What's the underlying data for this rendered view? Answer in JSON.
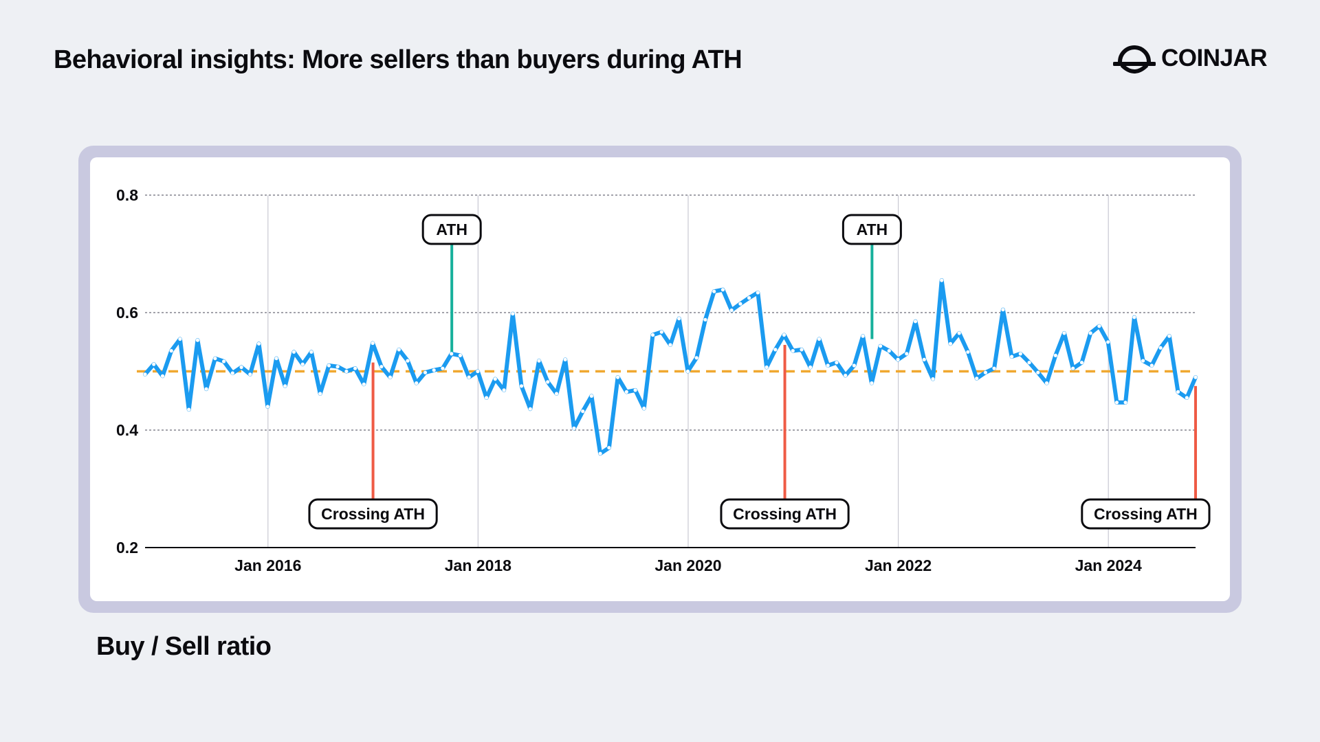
{
  "header": {
    "title": "Behavioral insights: More sellers than buyers during ATH",
    "logo_text": "COINJAR"
  },
  "footer": {
    "label": "Buy / Sell ratio"
  },
  "colors": {
    "line": "#1b9bf0",
    "reference": "#f0a830",
    "ath": "#16b09b",
    "crossing": "#ef5b45"
  },
  "chart_data": {
    "type": "line",
    "title": "Behavioral insights: More sellers than buyers during ATH",
    "ylabel": "Buy / Sell ratio",
    "xlabel": "",
    "ylim": [
      0.2,
      0.8
    ],
    "xlim": [
      2014.83,
      2024.83
    ],
    "y_ticks": [
      {
        "value": 0.2,
        "label": "0.2"
      },
      {
        "value": 0.4,
        "label": "0.4"
      },
      {
        "value": 0.6,
        "label": "0.6"
      },
      {
        "value": 0.8,
        "label": "0.8"
      }
    ],
    "x_ticks": [
      {
        "value": 2016,
        "label": "Jan 2016"
      },
      {
        "value": 2018,
        "label": "Jan 2018"
      },
      {
        "value": 2020,
        "label": "Jan 2020"
      },
      {
        "value": 2022,
        "label": "Jan 2022"
      },
      {
        "value": 2024,
        "label": "Jan 2024"
      }
    ],
    "grid": true,
    "reference_line": {
      "value": 0.5
    },
    "series": [
      {
        "name": "Buy / Sell ratio",
        "x_start": 2014.83,
        "step_months": 1,
        "values": [
          0.495,
          0.512,
          0.492,
          0.535,
          0.555,
          0.435,
          0.553,
          0.47,
          0.522,
          0.517,
          0.497,
          0.507,
          0.495,
          0.547,
          0.44,
          0.522,
          0.475,
          0.533,
          0.512,
          0.533,
          0.462,
          0.51,
          0.508,
          0.5,
          0.505,
          0.478,
          0.548,
          0.508,
          0.49,
          0.537,
          0.518,
          0.48,
          0.498,
          0.502,
          0.505,
          0.53,
          0.527,
          0.49,
          0.5,
          0.455,
          0.487,
          0.468,
          0.598,
          0.475,
          0.436,
          0.518,
          0.482,
          0.462,
          0.52,
          0.403,
          0.432,
          0.458,
          0.36,
          0.37,
          0.49,
          0.465,
          0.468,
          0.437,
          0.562,
          0.567,
          0.545,
          0.59,
          0.5,
          0.523,
          0.588,
          0.636,
          0.639,
          0.604,
          0.615,
          0.625,
          0.634,
          0.507,
          0.537,
          0.562,
          0.535,
          0.537,
          0.507,
          0.555,
          0.51,
          0.515,
          0.493,
          0.51,
          0.56,
          0.48,
          0.543,
          0.535,
          0.52,
          0.53,
          0.585,
          0.52,
          0.487,
          0.655,
          0.547,
          0.565,
          0.533,
          0.488,
          0.498,
          0.505,
          0.605,
          0.525,
          0.53,
          0.515,
          0.498,
          0.48,
          0.527,
          0.565,
          0.505,
          0.515,
          0.565,
          0.577,
          0.55,
          0.447,
          0.447,
          0.592,
          0.518,
          0.51,
          0.54,
          0.56,
          0.465,
          0.455,
          0.49
        ]
      }
    ],
    "annotations": [
      {
        "type": "ATH",
        "label": "ATH",
        "x": 2017.75,
        "y": 0.53
      },
      {
        "type": "ATH",
        "label": "ATH",
        "x": 2021.75,
        "y": 0.555
      },
      {
        "type": "crossing",
        "label": "Crossing ATH",
        "x": 2017.0,
        "y": 0.515
      },
      {
        "type": "crossing",
        "label": "Crossing ATH",
        "x": 2020.92,
        "y": 0.545
      },
      {
        "type": "crossing",
        "label": "Crossing ATH",
        "x": 2024.83,
        "y": 0.475
      }
    ]
  }
}
